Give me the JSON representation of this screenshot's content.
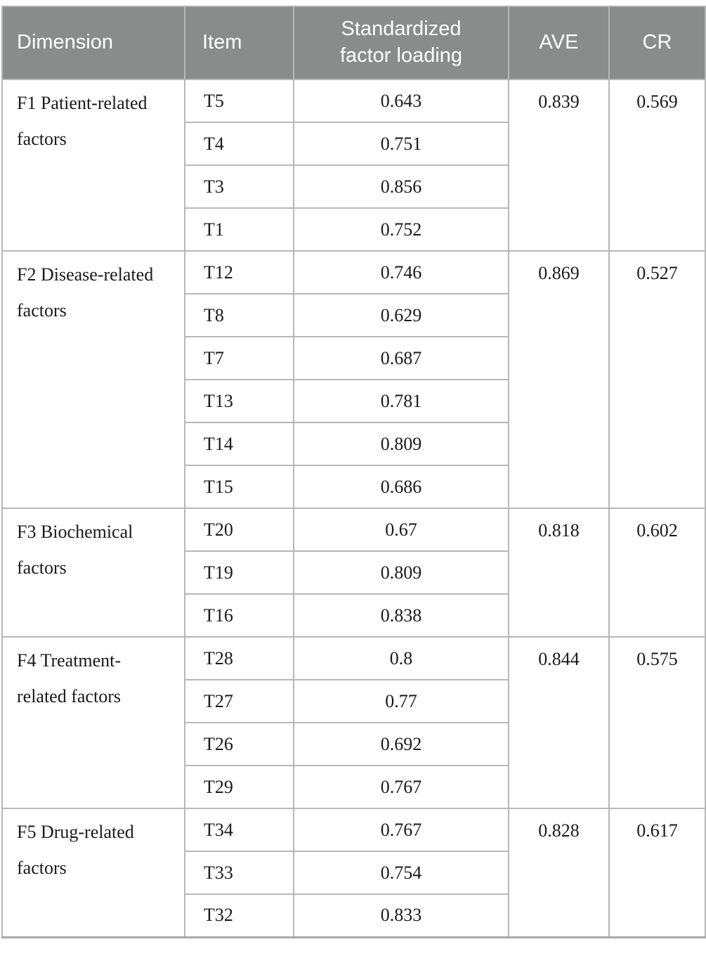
{
  "header": {
    "columns": {
      "dimension": "Dimension",
      "item": "Item",
      "loading": "Standardized factor loading",
      "ave": "AVE",
      "cr": "CR"
    }
  },
  "colors": {
    "header_bg": "#8a8b8b",
    "header_text": "#ffffff",
    "border": "#b7b7b7",
    "body_text": "#1a1a1a"
  },
  "table": {
    "groups": [
      {
        "dimension": "F1 Patient-related factors",
        "ave": "0.839",
        "cr": "0.569",
        "items": [
          {
            "item": "T5",
            "loading": "0.643"
          },
          {
            "item": "T4",
            "loading": "0.751"
          },
          {
            "item": "T3",
            "loading": "0.856"
          },
          {
            "item": "T1",
            "loading": "0.752"
          }
        ]
      },
      {
        "dimension": "F2 Disease-related factors",
        "ave": "0.869",
        "cr": "0.527",
        "items": [
          {
            "item": "T12",
            "loading": "0.746"
          },
          {
            "item": "T8",
            "loading": "0.629"
          },
          {
            "item": "T7",
            "loading": "0.687"
          },
          {
            "item": "T13",
            "loading": "0.781"
          },
          {
            "item": "T14",
            "loading": "0.809"
          },
          {
            "item": "T15",
            "loading": "0.686"
          }
        ]
      },
      {
        "dimension": "F3 Biochemical factors",
        "ave": "0.818",
        "cr": "0.602",
        "items": [
          {
            "item": "T20",
            "loading": "0.67"
          },
          {
            "item": "T19",
            "loading": "0.809"
          },
          {
            "item": "T16",
            "loading": "0.838"
          }
        ]
      },
      {
        "dimension": "F4 Treatment-related factors",
        "ave": "0.844",
        "cr": "0.575",
        "items": [
          {
            "item": "T28",
            "loading": "0.8"
          },
          {
            "item": "T27",
            "loading": "0.77"
          },
          {
            "item": "T26",
            "loading": "0.692"
          },
          {
            "item": "T29",
            "loading": "0.767"
          }
        ]
      },
      {
        "dimension": "F5 Drug-related factors",
        "ave": "0.828",
        "cr": "0.617",
        "items": [
          {
            "item": "T34",
            "loading": "0.767"
          },
          {
            "item": "T33",
            "loading": "0.754"
          },
          {
            "item": "T32",
            "loading": "0.833"
          }
        ]
      }
    ]
  }
}
